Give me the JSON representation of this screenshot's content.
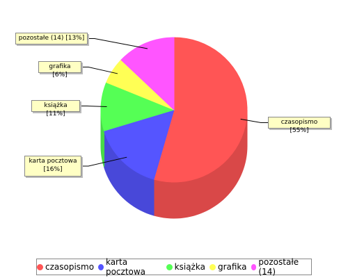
{
  "chart_data": {
    "type": "pie3d",
    "categories": [
      "czasopismo",
      "karta pocztowa",
      "książka",
      "grafika",
      "pozostałe (14)"
    ],
    "values": [
      55,
      16,
      11,
      6,
      13
    ],
    "value_labels": [
      "czasopismo [55%]",
      "karta pocztowa [16%]",
      "książka [11%]",
      "grafika [6%]",
      "pozostałe (14) [13%]"
    ],
    "colors": [
      "#ff5555",
      "#5555ff",
      "#55ff55",
      "#ffff55",
      "#ff55ff"
    ],
    "legend": "bottom"
  }
}
